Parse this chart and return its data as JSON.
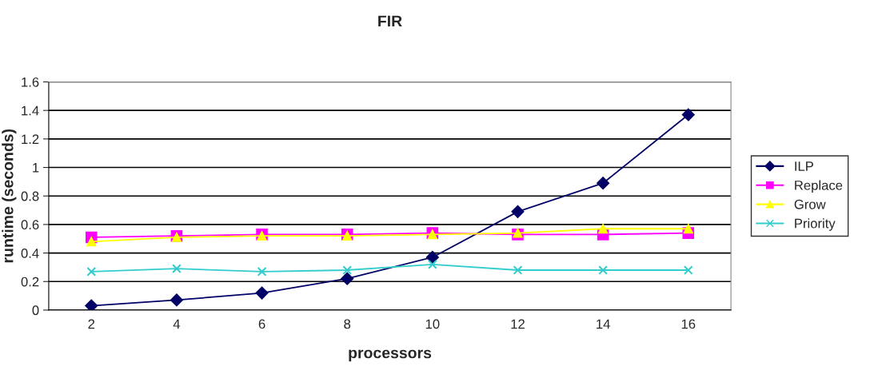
{
  "chart_data": {
    "type": "line",
    "title": "FIR",
    "xlabel": "processors",
    "ylabel": "runtime (seconds)",
    "categories": [
      "2",
      "4",
      "6",
      "8",
      "10",
      "12",
      "14",
      "16"
    ],
    "series": [
      {
        "name": "ILP",
        "color": "#000066",
        "marker": "diamond",
        "values": [
          0.03,
          0.07,
          0.12,
          0.22,
          0.37,
          0.69,
          0.89,
          1.37
        ]
      },
      {
        "name": "Replace",
        "color": "#ff00ff",
        "marker": "square",
        "values": [
          0.51,
          0.52,
          0.53,
          0.53,
          0.54,
          0.53,
          0.53,
          0.54
        ]
      },
      {
        "name": "Grow",
        "color": "#ffff00",
        "marker": "triangle",
        "values": [
          0.48,
          0.51,
          0.52,
          0.52,
          0.53,
          0.54,
          0.57,
          0.57
        ]
      },
      {
        "name": "Priority",
        "color": "#33cccc",
        "marker": "cross",
        "values": [
          0.27,
          0.29,
          0.27,
          0.28,
          0.32,
          0.28,
          0.28,
          0.28
        ]
      }
    ],
    "ylim": [
      0,
      1.6
    ],
    "yticks": [
      0,
      0.2,
      0.4,
      0.6,
      0.8,
      1,
      1.2,
      1.4,
      1.6
    ],
    "grid": "y",
    "legend": "right"
  }
}
